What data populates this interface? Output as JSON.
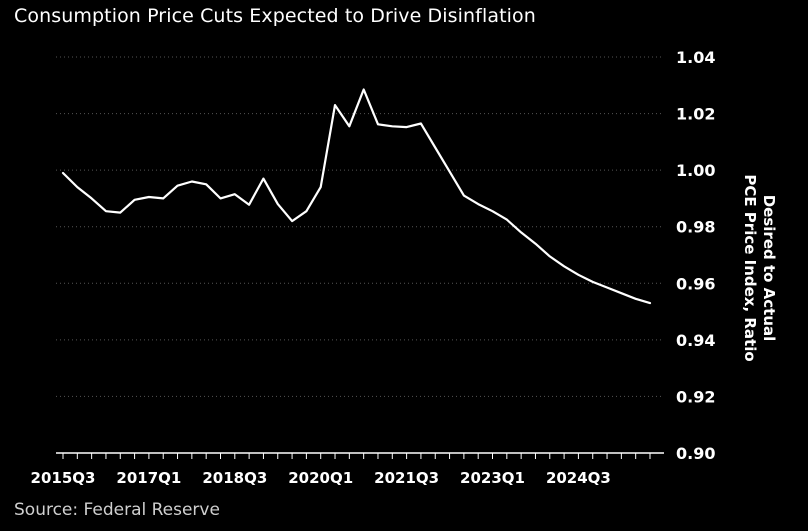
{
  "title": "Consumption Price Cuts Expected to Drive Disinflation",
  "source": "Source: Federal Reserve",
  "chart_data": {
    "type": "line",
    "ylabel_lines": [
      "Desired to Actual",
      "PCE Price Index, Ratio"
    ],
    "xlabel": "",
    "ylim": [
      0.9,
      1.04
    ],
    "yticks": [
      "0.90",
      "0.92",
      "0.94",
      "0.96",
      "0.98",
      "1.00",
      "1.02",
      "1.04"
    ],
    "xtick_labels": [
      "2015Q3",
      "2017Q1",
      "2018Q3",
      "2020Q1",
      "2021Q3",
      "2023Q1",
      "2024Q3"
    ],
    "grid": "horizontal-dotted",
    "colors": {
      "line": "#ffffff",
      "background": "#000000",
      "grid": "#555555"
    },
    "series": [
      {
        "x": [
          "2015Q3",
          "2015Q4",
          "2016Q1",
          "2016Q2",
          "2016Q3",
          "2016Q4",
          "2017Q1",
          "2017Q2",
          "2017Q3",
          "2017Q4",
          "2018Q1",
          "2018Q2",
          "2018Q3",
          "2018Q4",
          "2019Q1",
          "2019Q2",
          "2019Q3",
          "2019Q4",
          "2020Q1",
          "2020Q2",
          "2020Q3",
          "2020Q4",
          "2021Q1",
          "2021Q2",
          "2021Q3",
          "2021Q4",
          "2022Q1",
          "2022Q2",
          "2022Q3",
          "2022Q4",
          "2023Q1",
          "2023Q2",
          "2023Q3",
          "2023Q4",
          "2024Q1",
          "2024Q2",
          "2024Q3",
          "2024Q4",
          "2025Q1",
          "2025Q2",
          "2025Q3",
          "2025Q4"
        ],
        "values": [
          0.999,
          0.994,
          0.99,
          0.9855,
          0.985,
          0.9895,
          0.9905,
          0.99,
          0.9945,
          0.996,
          0.995,
          0.99,
          0.9915,
          0.9878,
          0.997,
          0.988,
          0.982,
          0.9855,
          0.994,
          1.023,
          1.0155,
          1.0285,
          1.0162,
          1.0155,
          1.0152,
          1.0165,
          1.008,
          0.9995,
          0.991,
          0.988,
          0.9855,
          0.9825,
          0.978,
          0.974,
          0.9695,
          0.966,
          0.963,
          0.9605,
          0.9585,
          0.9565,
          0.9545,
          0.953
        ]
      }
    ]
  }
}
